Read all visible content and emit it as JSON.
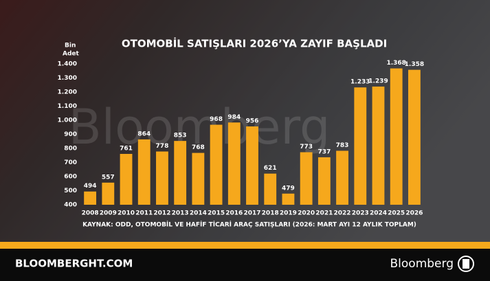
{
  "chart_data": {
    "type": "bar",
    "title": "OTOMOBİL SATIŞLARI 2026’YA ZAYIF BAŞLADI",
    "ylabel": [
      "Bin",
      "Adet"
    ],
    "source": "KAYNAK: ODD, OTOMOBİL VE HAFİF TİCARİ ARAÇ SATIŞLARI (2026: MART AYI 12 AYLIK TOPLAM)",
    "categories": [
      "2008",
      "2009",
      "2010",
      "2011",
      "2012",
      "2013",
      "2014",
      "2015",
      "2016",
      "2017",
      "2018",
      "2019",
      "2020",
      "2021",
      "2022",
      "2023",
      "2024",
      "2025",
      "2026"
    ],
    "values": [
      494,
      557,
      761,
      864,
      778,
      853,
      768,
      968,
      984,
      956,
      621,
      479,
      773,
      737,
      783,
      1233,
      1239,
      1368,
      1358
    ],
    "value_labels": [
      "494",
      "557",
      "761",
      "864",
      "778",
      "853",
      "768",
      "968",
      "984",
      "956",
      "621",
      "479",
      "773",
      "737",
      "783",
      "1.233",
      "1.239",
      "1.368",
      "1.358"
    ],
    "color": "#f6a81c",
    "ylim": [
      400,
      1400
    ],
    "yticks": [
      400,
      500,
      600,
      700,
      800,
      900,
      {
        "value": 1000,
        "label": "1.000"
      },
      {
        "value": 1100,
        "label": "1.100"
      },
      {
        "value": 1200,
        "label": "1.200"
      },
      {
        "value": 1300,
        "label": "1.300"
      },
      {
        "value": 1400,
        "label": "1.400"
      }
    ],
    "grid": false
  },
  "watermark": "Bloomberg",
  "footer": {
    "site": "BLOOMBERGHT.COM",
    "brand": "Bloomberg"
  }
}
